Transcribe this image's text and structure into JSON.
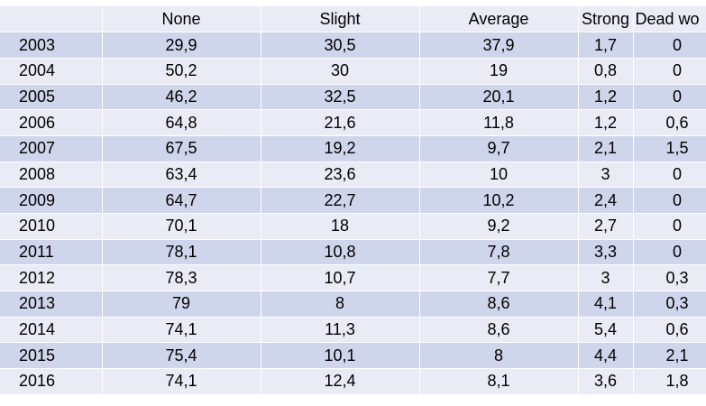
{
  "chart_data": {
    "type": "table",
    "columns": [
      "",
      "None",
      "Slight",
      "Average",
      "Strong",
      "Dead wo"
    ],
    "rows": [
      [
        "2003",
        "29,9",
        "30,5",
        "37,9",
        "1,7",
        "0"
      ],
      [
        "2004",
        "50,2",
        "30",
        "19",
        "0,8",
        "0"
      ],
      [
        "2005",
        "46,2",
        "32,5",
        "20,1",
        "1,2",
        "0"
      ],
      [
        "2006",
        "64,8",
        "21,6",
        "11,8",
        "1,2",
        "0,6"
      ],
      [
        "2007",
        "67,5",
        "19,2",
        "9,7",
        "2,1",
        "1,5"
      ],
      [
        "2008",
        "63,4",
        "23,6",
        "10",
        "3",
        "0"
      ],
      [
        "2009",
        "64,7",
        "22,7",
        "10,2",
        "2,4",
        "0"
      ],
      [
        "2010",
        "70,1",
        "18",
        "9,2",
        "2,7",
        "0"
      ],
      [
        "2011",
        "78,1",
        "10,8",
        "7,8",
        "3,3",
        "0"
      ],
      [
        "2012",
        "78,3",
        "10,7",
        "7,7",
        "3",
        "0,3"
      ],
      [
        "2013",
        "79",
        "8",
        "8,6",
        "4,1",
        "0,3"
      ],
      [
        "2014",
        "74,1",
        "11,3",
        "8,6",
        "5,4",
        "0,6"
      ],
      [
        "2015",
        "75,4",
        "10,1",
        "8",
        "4,4",
        "2,1"
      ],
      [
        "2016",
        "74,1",
        "12,4",
        "8,1",
        "3,6",
        "1,8"
      ]
    ]
  },
  "colors": {
    "row_light": "#e9ebf5",
    "row_dark": "#cfd5ea"
  }
}
